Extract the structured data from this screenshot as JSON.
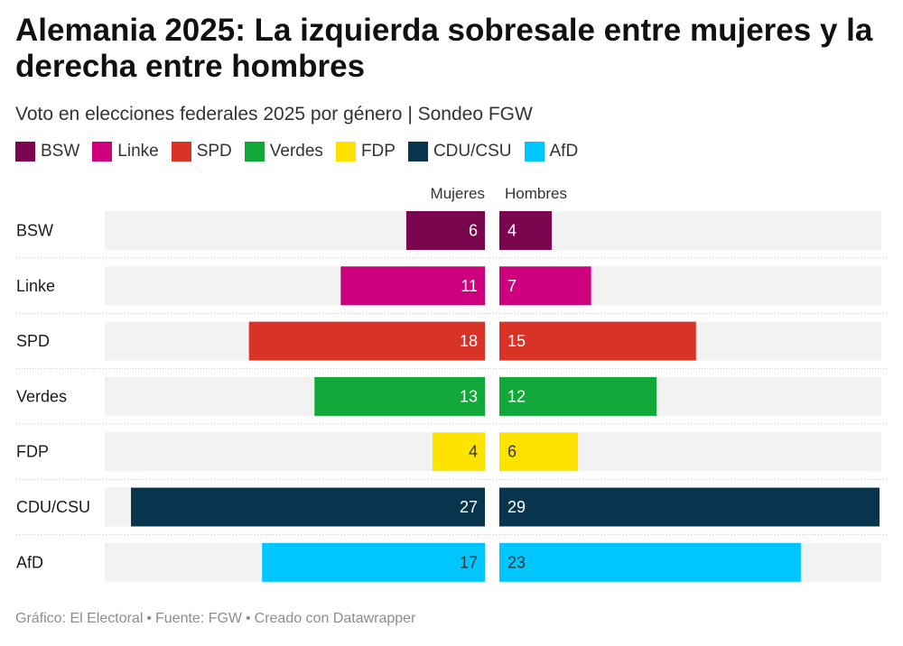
{
  "title": "Alemania 2025: La izquierda sobresale entre mujeres y la derecha entre hombres",
  "subtitle": "Voto en elecciones federales 2025 por género | Sondeo FGW",
  "legend": [
    {
      "label": "BSW",
      "color": "#7a0650"
    },
    {
      "label": "Linke",
      "color": "#cf007e"
    },
    {
      "label": "SPD",
      "color": "#d93328"
    },
    {
      "label": "Verdes",
      "color": "#11a839"
    },
    {
      "label": "FDP",
      "color": "#fee300"
    },
    {
      "label": "CDU/CSU",
      "color": "#08354d"
    },
    {
      "label": "AfD",
      "color": "#00c6ff"
    }
  ],
  "chart_data": {
    "type": "bar",
    "subtype": "diverging-butterfly",
    "categories": [
      "BSW",
      "Linke",
      "SPD",
      "Verdes",
      "FDP",
      "CDU/CSU",
      "AfD"
    ],
    "series": [
      {
        "name": "Mujeres",
        "values": [
          6,
          11,
          18,
          13,
          4,
          27,
          17
        ]
      },
      {
        "name": "Hombres",
        "values": [
          4,
          7,
          15,
          12,
          6,
          29,
          23
        ]
      }
    ],
    "colors": [
      "#7a0650",
      "#cf007e",
      "#d93328",
      "#11a839",
      "#fee300",
      "#08354d",
      "#00c6ff"
    ],
    "label_colors": [
      "#ffffff",
      "#ffffff",
      "#ffffff",
      "#ffffff",
      "#333333",
      "#ffffff",
      "#333333"
    ],
    "xlim": [
      0,
      29
    ],
    "background_color": "#f2f2f2"
  },
  "footer": {
    "grafico": "Gráfico: El Electoral",
    "fuente": "Fuente: FGW",
    "creado": "Creado con Datawrapper",
    "separator": "•"
  }
}
